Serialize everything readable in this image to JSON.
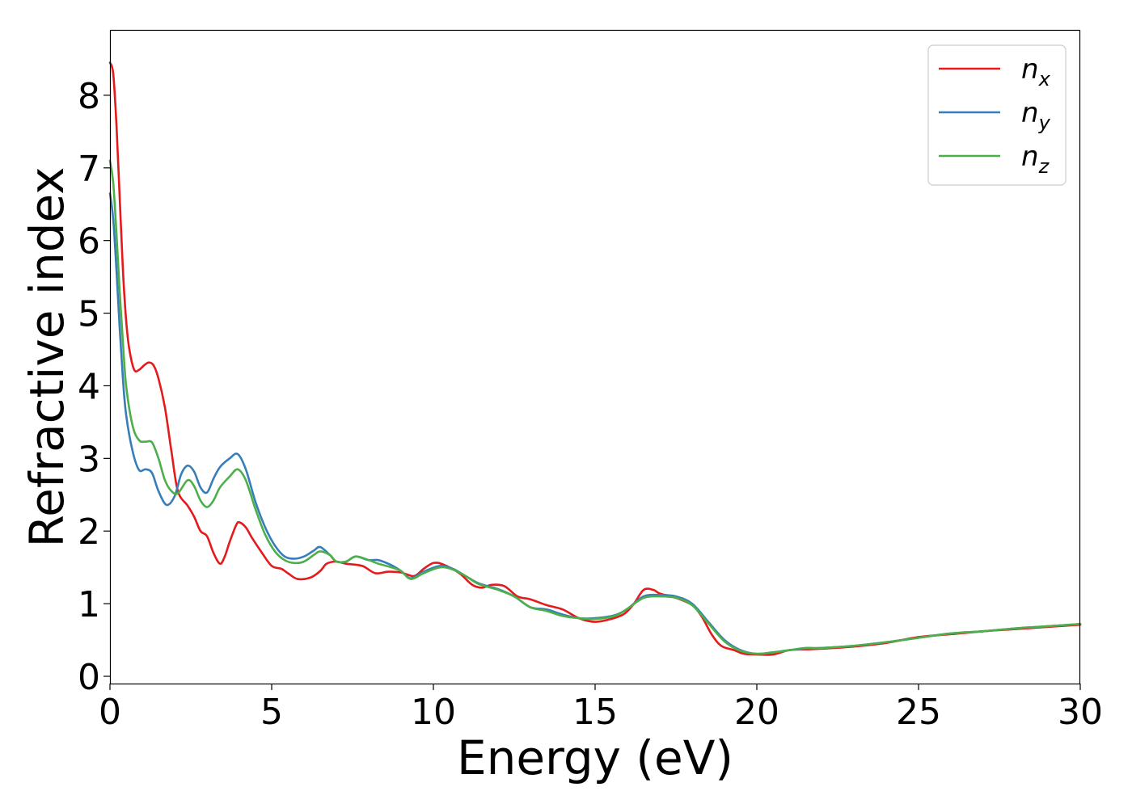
{
  "chart_data": {
    "type": "line",
    "xlabel": "Energy (eV)",
    "ylabel": "Refractive index",
    "xlim": [
      0,
      30
    ],
    "ylim": [
      -0.1,
      8.9
    ],
    "xticks": [
      0,
      5,
      10,
      15,
      20,
      25,
      30
    ],
    "yticks": [
      0,
      1,
      2,
      3,
      4,
      5,
      6,
      7,
      8
    ],
    "grid": false,
    "legend_position": "top-right",
    "series": [
      {
        "name": "n_x",
        "label_main": "n",
        "label_sub": "x",
        "color": "#e41a1c",
        "points": [
          [
            0,
            8.45
          ],
          [
            0.1,
            8.3
          ],
          [
            0.2,
            7.6
          ],
          [
            0.3,
            6.6
          ],
          [
            0.4,
            5.6
          ],
          [
            0.5,
            4.9
          ],
          [
            0.6,
            4.5
          ],
          [
            0.75,
            4.22
          ],
          [
            0.9,
            4.22
          ],
          [
            1.05,
            4.28
          ],
          [
            1.2,
            4.32
          ],
          [
            1.35,
            4.28
          ],
          [
            1.5,
            4.1
          ],
          [
            1.7,
            3.7
          ],
          [
            1.9,
            3.1
          ],
          [
            2.1,
            2.55
          ],
          [
            2.4,
            2.35
          ],
          [
            2.6,
            2.2
          ],
          [
            2.8,
            2.0
          ],
          [
            3.0,
            1.93
          ],
          [
            3.2,
            1.7
          ],
          [
            3.4,
            1.55
          ],
          [
            3.55,
            1.65
          ],
          [
            3.7,
            1.85
          ],
          [
            3.9,
            2.08
          ],
          [
            4.0,
            2.12
          ],
          [
            4.2,
            2.05
          ],
          [
            4.4,
            1.9
          ],
          [
            4.7,
            1.7
          ],
          [
            5.0,
            1.52
          ],
          [
            5.3,
            1.48
          ],
          [
            5.5,
            1.42
          ],
          [
            5.8,
            1.34
          ],
          [
            6.2,
            1.36
          ],
          [
            6.5,
            1.45
          ],
          [
            6.7,
            1.55
          ],
          [
            7.0,
            1.58
          ],
          [
            7.3,
            1.55
          ],
          [
            7.8,
            1.52
          ],
          [
            8.2,
            1.42
          ],
          [
            8.6,
            1.44
          ],
          [
            9.0,
            1.43
          ],
          [
            9.4,
            1.38
          ],
          [
            9.7,
            1.48
          ],
          [
            10.0,
            1.56
          ],
          [
            10.3,
            1.54
          ],
          [
            10.8,
            1.42
          ],
          [
            11.2,
            1.26
          ],
          [
            11.5,
            1.22
          ],
          [
            11.8,
            1.26
          ],
          [
            12.2,
            1.24
          ],
          [
            12.6,
            1.1
          ],
          [
            13.0,
            1.06
          ],
          [
            13.5,
            0.98
          ],
          [
            14.0,
            0.92
          ],
          [
            14.5,
            0.8
          ],
          [
            15.0,
            0.75
          ],
          [
            15.5,
            0.79
          ],
          [
            15.9,
            0.86
          ],
          [
            16.2,
            1.0
          ],
          [
            16.5,
            1.19
          ],
          [
            16.8,
            1.19
          ],
          [
            17.0,
            1.14
          ],
          [
            17.5,
            1.08
          ],
          [
            18.0,
            0.98
          ],
          [
            18.3,
            0.82
          ],
          [
            18.6,
            0.58
          ],
          [
            18.9,
            0.42
          ],
          [
            19.3,
            0.36
          ],
          [
            19.6,
            0.31
          ],
          [
            20.0,
            0.3
          ],
          [
            20.5,
            0.3
          ],
          [
            21.0,
            0.36
          ],
          [
            21.5,
            0.37
          ],
          [
            22.0,
            0.38
          ],
          [
            23.0,
            0.41
          ],
          [
            24.0,
            0.46
          ],
          [
            25.0,
            0.54
          ],
          [
            26.0,
            0.58
          ],
          [
            27.0,
            0.62
          ],
          [
            28.0,
            0.65
          ],
          [
            29.0,
            0.68
          ],
          [
            30.0,
            0.71
          ]
        ]
      },
      {
        "name": "n_y",
        "label_main": "n",
        "label_sub": "y",
        "color": "#377eb8",
        "points": [
          [
            0,
            6.65
          ],
          [
            0.1,
            6.3
          ],
          [
            0.2,
            5.6
          ],
          [
            0.3,
            4.8
          ],
          [
            0.4,
            4.1
          ],
          [
            0.5,
            3.6
          ],
          [
            0.7,
            3.1
          ],
          [
            0.9,
            2.84
          ],
          [
            1.1,
            2.85
          ],
          [
            1.3,
            2.8
          ],
          [
            1.5,
            2.55
          ],
          [
            1.75,
            2.36
          ],
          [
            2.0,
            2.48
          ],
          [
            2.2,
            2.78
          ],
          [
            2.4,
            2.9
          ],
          [
            2.6,
            2.82
          ],
          [
            2.8,
            2.6
          ],
          [
            3.0,
            2.53
          ],
          [
            3.2,
            2.72
          ],
          [
            3.4,
            2.88
          ],
          [
            3.7,
            3.0
          ],
          [
            3.95,
            3.06
          ],
          [
            4.2,
            2.85
          ],
          [
            4.5,
            2.4
          ],
          [
            4.8,
            2.05
          ],
          [
            5.1,
            1.8
          ],
          [
            5.4,
            1.65
          ],
          [
            5.7,
            1.62
          ],
          [
            6.0,
            1.65
          ],
          [
            6.3,
            1.73
          ],
          [
            6.5,
            1.78
          ],
          [
            6.8,
            1.67
          ],
          [
            7.0,
            1.58
          ],
          [
            7.3,
            1.58
          ],
          [
            7.6,
            1.65
          ],
          [
            8.0,
            1.6
          ],
          [
            8.3,
            1.6
          ],
          [
            8.7,
            1.53
          ],
          [
            9.0,
            1.45
          ],
          [
            9.3,
            1.35
          ],
          [
            9.7,
            1.44
          ],
          [
            10.2,
            1.52
          ],
          [
            10.6,
            1.48
          ],
          [
            11.0,
            1.38
          ],
          [
            11.4,
            1.28
          ],
          [
            12.0,
            1.2
          ],
          [
            12.5,
            1.1
          ],
          [
            13.0,
            0.95
          ],
          [
            13.5,
            0.92
          ],
          [
            14.0,
            0.85
          ],
          [
            14.5,
            0.8
          ],
          [
            15.0,
            0.8
          ],
          [
            15.6,
            0.84
          ],
          [
            16.0,
            0.93
          ],
          [
            16.5,
            1.1
          ],
          [
            17.0,
            1.12
          ],
          [
            17.5,
            1.1
          ],
          [
            18.0,
            1.0
          ],
          [
            18.5,
            0.75
          ],
          [
            19.0,
            0.5
          ],
          [
            19.5,
            0.36
          ],
          [
            20.0,
            0.31
          ],
          [
            20.5,
            0.33
          ],
          [
            21.0,
            0.36
          ],
          [
            21.5,
            0.38
          ],
          [
            22.0,
            0.39
          ],
          [
            23.0,
            0.42
          ],
          [
            24.0,
            0.47
          ],
          [
            25.0,
            0.53
          ],
          [
            26.0,
            0.59
          ],
          [
            27.0,
            0.62
          ],
          [
            28.0,
            0.66
          ],
          [
            29.0,
            0.69
          ],
          [
            30.0,
            0.72
          ]
        ]
      },
      {
        "name": "n_z",
        "label_main": "n",
        "label_sub": "z",
        "color": "#4daf4a",
        "points": [
          [
            0,
            7.1
          ],
          [
            0.1,
            6.8
          ],
          [
            0.2,
            6.1
          ],
          [
            0.3,
            5.3
          ],
          [
            0.4,
            4.6
          ],
          [
            0.5,
            4.0
          ],
          [
            0.7,
            3.45
          ],
          [
            0.9,
            3.25
          ],
          [
            1.1,
            3.23
          ],
          [
            1.3,
            3.22
          ],
          [
            1.5,
            3.0
          ],
          [
            1.7,
            2.7
          ],
          [
            1.9,
            2.55
          ],
          [
            2.1,
            2.52
          ],
          [
            2.4,
            2.7
          ],
          [
            2.6,
            2.62
          ],
          [
            2.8,
            2.42
          ],
          [
            3.0,
            2.33
          ],
          [
            3.2,
            2.42
          ],
          [
            3.4,
            2.6
          ],
          [
            3.7,
            2.75
          ],
          [
            3.95,
            2.85
          ],
          [
            4.2,
            2.7
          ],
          [
            4.5,
            2.3
          ],
          [
            4.8,
            1.95
          ],
          [
            5.1,
            1.72
          ],
          [
            5.4,
            1.6
          ],
          [
            5.7,
            1.56
          ],
          [
            6.0,
            1.58
          ],
          [
            6.3,
            1.67
          ],
          [
            6.5,
            1.72
          ],
          [
            6.8,
            1.67
          ],
          [
            7.0,
            1.58
          ],
          [
            7.3,
            1.58
          ],
          [
            7.6,
            1.65
          ],
          [
            8.0,
            1.6
          ],
          [
            8.3,
            1.55
          ],
          [
            8.7,
            1.5
          ],
          [
            9.0,
            1.45
          ],
          [
            9.3,
            1.34
          ],
          [
            9.7,
            1.42
          ],
          [
            10.2,
            1.5
          ],
          [
            10.6,
            1.47
          ],
          [
            11.0,
            1.38
          ],
          [
            11.4,
            1.27
          ],
          [
            12.0,
            1.19
          ],
          [
            12.5,
            1.1
          ],
          [
            13.0,
            0.95
          ],
          [
            13.5,
            0.9
          ],
          [
            14.0,
            0.83
          ],
          [
            14.5,
            0.8
          ],
          [
            15.0,
            0.79
          ],
          [
            15.6,
            0.83
          ],
          [
            16.0,
            0.93
          ],
          [
            16.5,
            1.08
          ],
          [
            17.0,
            1.1
          ],
          [
            17.5,
            1.08
          ],
          [
            18.0,
            0.98
          ],
          [
            18.5,
            0.73
          ],
          [
            19.0,
            0.48
          ],
          [
            19.5,
            0.35
          ],
          [
            20.0,
            0.31
          ],
          [
            20.5,
            0.33
          ],
          [
            21.0,
            0.36
          ],
          [
            21.5,
            0.39
          ],
          [
            22.0,
            0.39
          ],
          [
            23.0,
            0.42
          ],
          [
            24.0,
            0.47
          ],
          [
            25.0,
            0.53
          ],
          [
            26.0,
            0.59
          ],
          [
            27.0,
            0.62
          ],
          [
            28.0,
            0.66
          ],
          [
            29.0,
            0.69
          ],
          [
            30.0,
            0.72
          ]
        ]
      }
    ]
  }
}
